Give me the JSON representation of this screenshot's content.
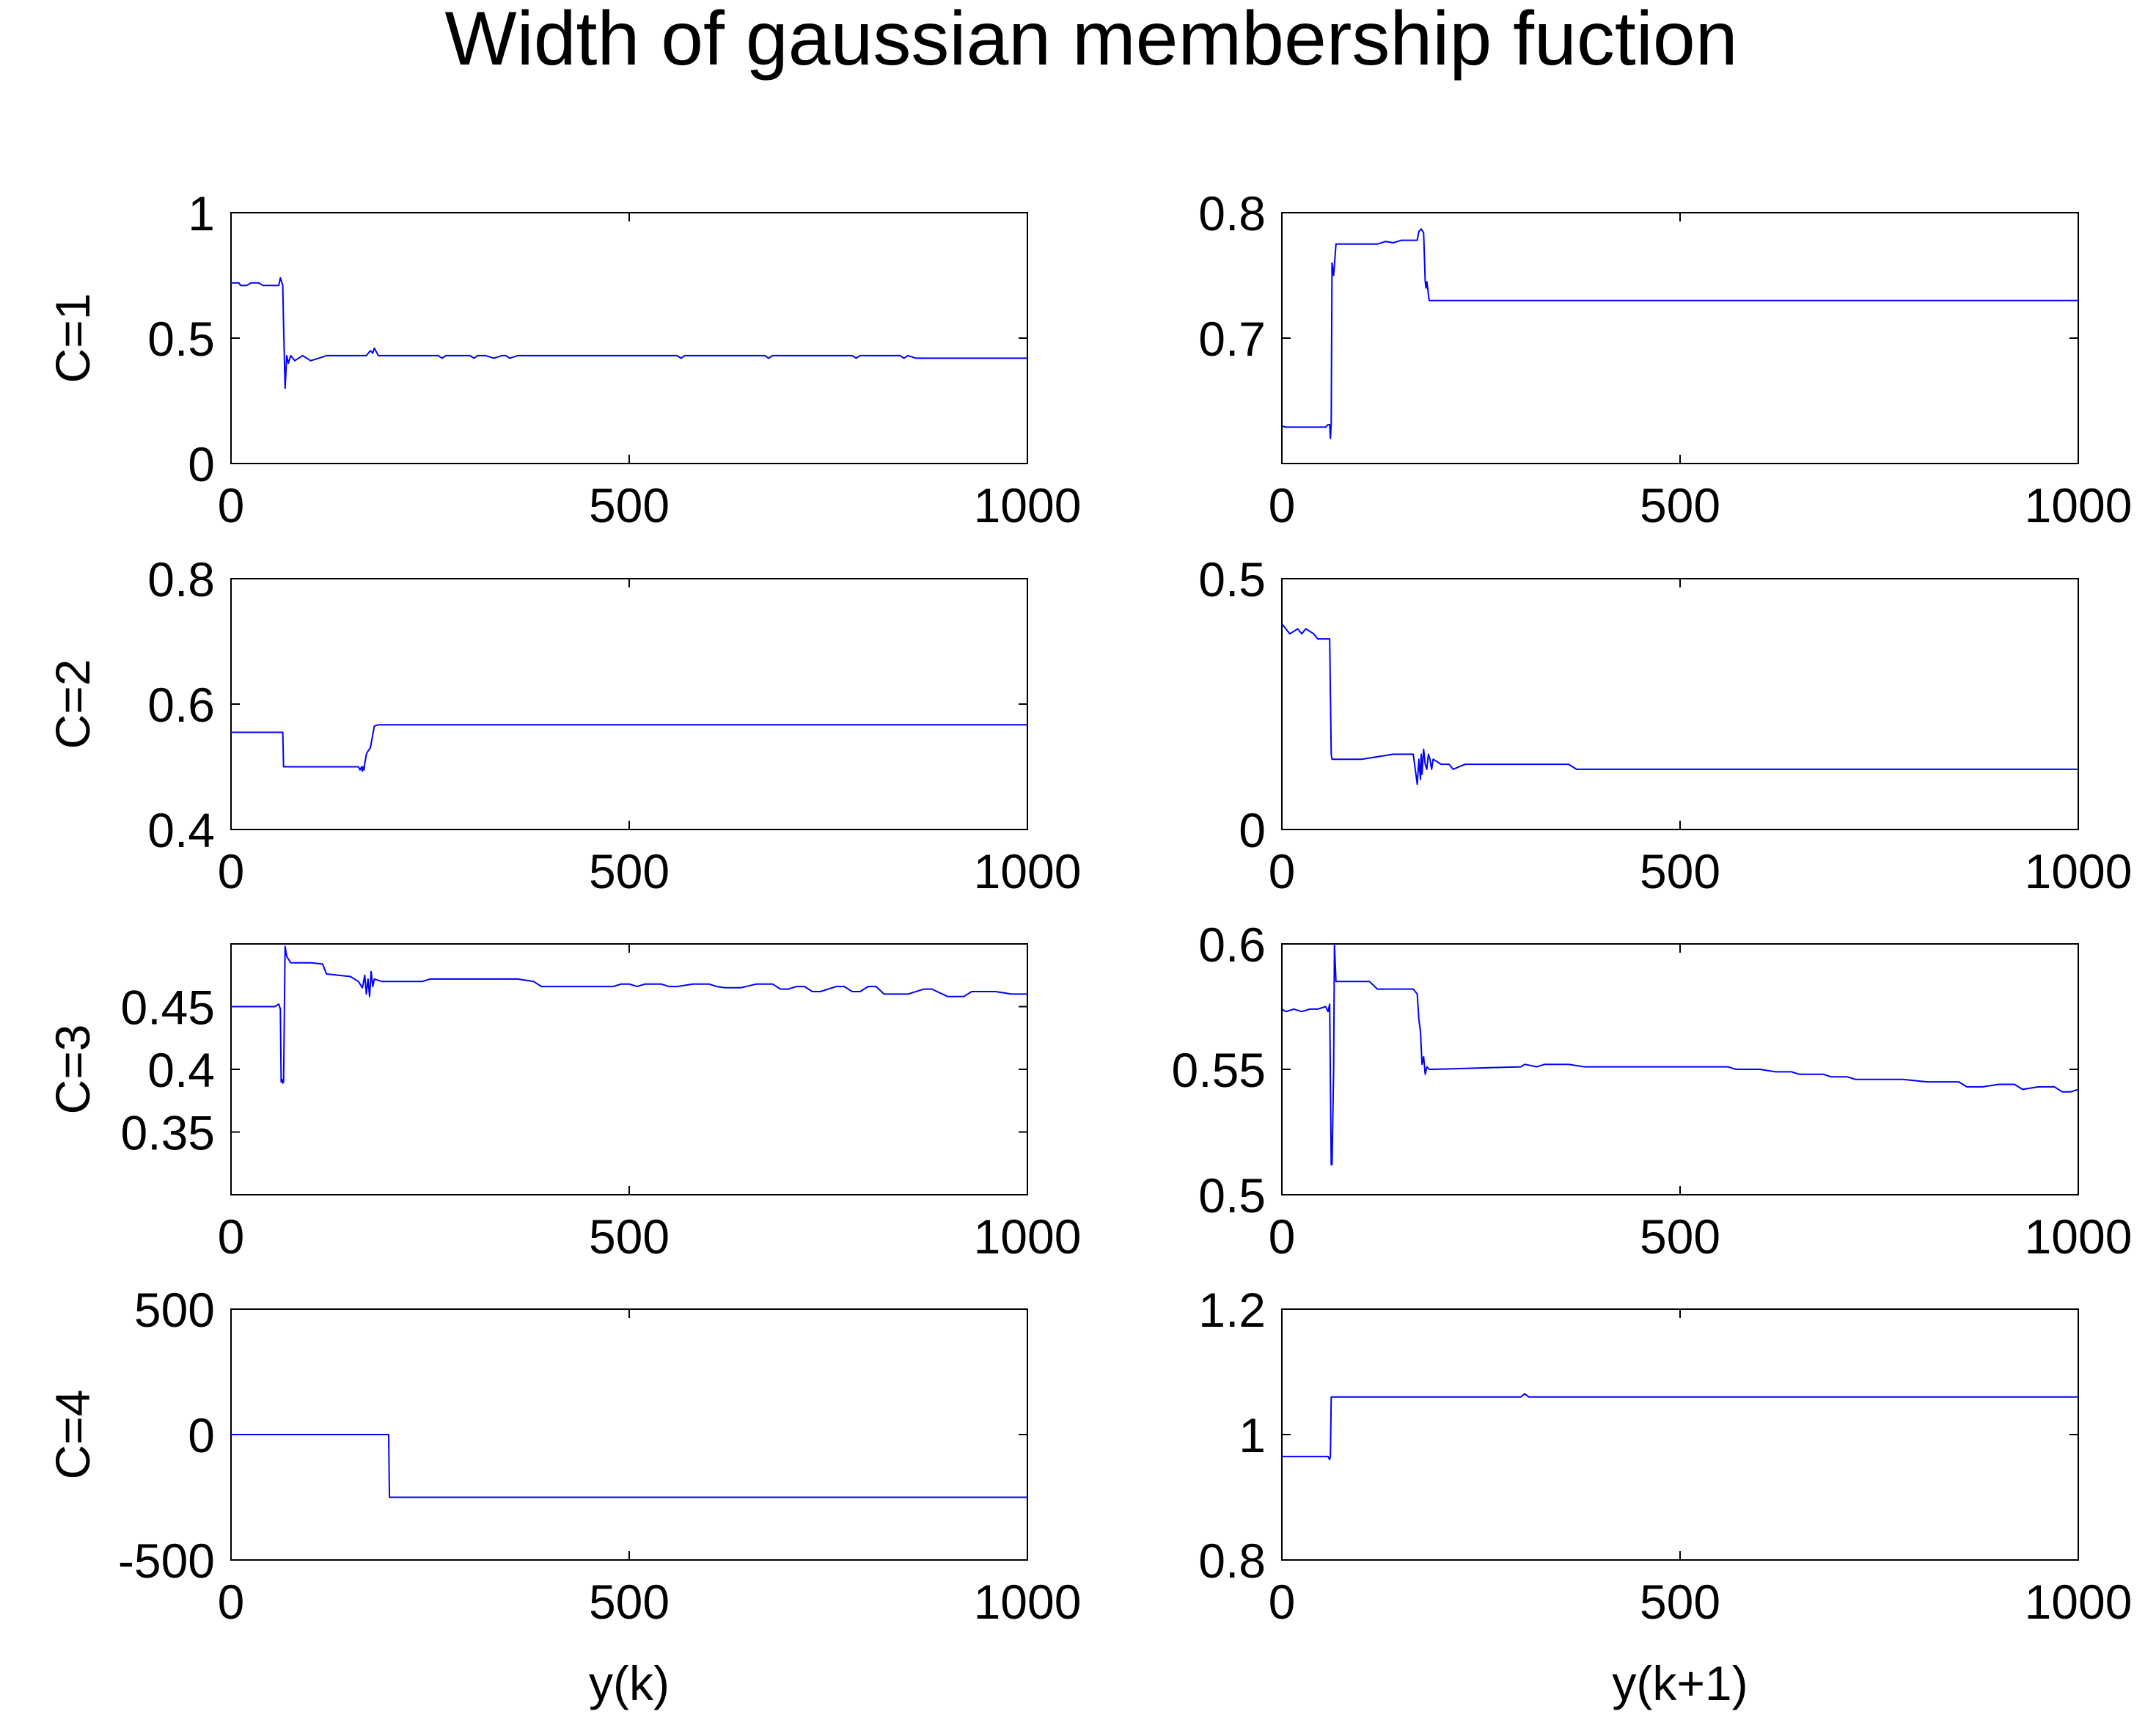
{
  "figure": {
    "title": "Width of gaussian membership fuction"
  },
  "style": {
    "line_color": "#0000ff",
    "axes_color": "#000000",
    "background": "#ffffff"
  },
  "chart_data": [
    {
      "type": "line",
      "row": 0,
      "col": 0,
      "ylabel": "C=1",
      "xlabel": "",
      "xlim": [
        0,
        1000
      ],
      "ylim": [
        0,
        1
      ],
      "xticks": [
        0,
        500,
        1000
      ],
      "xtick_labels": [
        "0",
        "500",
        "1000"
      ],
      "yticks": [
        0,
        0.5,
        1
      ],
      "ytick_labels": [
        "0",
        "0.5",
        "1"
      ],
      "series": [
        {
          "x": [
            0,
            10,
            12,
            20,
            25,
            35,
            40,
            50,
            60,
            62,
            65,
            66,
            68,
            70,
            72,
            75,
            80,
            90,
            100,
            110,
            120,
            170,
            175,
            178,
            180,
            185,
            200,
            260,
            265,
            270,
            280,
            300,
            305,
            310,
            320,
            330,
            340,
            345,
            350,
            360,
            560,
            565,
            570,
            670,
            675,
            680,
            780,
            785,
            790,
            840,
            845,
            850,
            860,
            1000
          ],
          "y": [
            0.72,
            0.72,
            0.71,
            0.71,
            0.72,
            0.72,
            0.71,
            0.71,
            0.71,
            0.74,
            0.71,
            0.55,
            0.3,
            0.43,
            0.4,
            0.43,
            0.41,
            0.43,
            0.41,
            0.42,
            0.43,
            0.43,
            0.45,
            0.44,
            0.46,
            0.43,
            0.43,
            0.43,
            0.42,
            0.43,
            0.43,
            0.43,
            0.42,
            0.43,
            0.43,
            0.42,
            0.43,
            0.43,
            0.42,
            0.43,
            0.43,
            0.42,
            0.43,
            0.43,
            0.42,
            0.43,
            0.43,
            0.42,
            0.43,
            0.43,
            0.42,
            0.43,
            0.42,
            0.42
          ]
        }
      ]
    },
    {
      "type": "line",
      "row": 0,
      "col": 1,
      "ylabel": "",
      "xlabel": "",
      "xlim": [
        0,
        1000
      ],
      "ylim": [
        0.6,
        0.8
      ],
      "xticks": [
        0,
        500,
        1000
      ],
      "xtick_labels": [
        "0",
        "500",
        "1000"
      ],
      "yticks": [
        0.7,
        0.8
      ],
      "ytick_labels": [
        "0.7",
        "0.8"
      ],
      "series": [
        {
          "x": [
            0,
            5,
            55,
            58,
            60,
            61,
            62,
            63,
            65,
            68,
            70,
            75,
            100,
            120,
            130,
            140,
            150,
            160,
            170,
            172,
            175,
            178,
            180,
            181,
            182,
            185,
            190,
            1000
          ],
          "y": [
            0.63,
            0.629,
            0.629,
            0.631,
            0.631,
            0.62,
            0.632,
            0.76,
            0.75,
            0.775,
            0.775,
            0.775,
            0.775,
            0.775,
            0.777,
            0.776,
            0.778,
            0.778,
            0.778,
            0.785,
            0.787,
            0.784,
            0.745,
            0.74,
            0.745,
            0.73,
            0.73,
            0.73
          ]
        }
      ]
    },
    {
      "type": "line",
      "row": 1,
      "col": 0,
      "ylabel": "C=2",
      "xlabel": "",
      "xlim": [
        0,
        1000
      ],
      "ylim": [
        0.4,
        0.8
      ],
      "xticks": [
        0,
        500,
        1000
      ],
      "xtick_labels": [
        "0",
        "500",
        "1000"
      ],
      "yticks": [
        0.4,
        0.6,
        0.8
      ],
      "ytick_labels": [
        "0.4",
        "0.6",
        "0.8"
      ],
      "series": [
        {
          "x": [
            0,
            65,
            66,
            160,
            162,
            164,
            165,
            166,
            167,
            168,
            170,
            172,
            175,
            180,
            185,
            1000
          ],
          "y": [
            0.555,
            0.555,
            0.5,
            0.5,
            0.495,
            0.5,
            0.493,
            0.5,
            0.495,
            0.505,
            0.52,
            0.525,
            0.53,
            0.565,
            0.567,
            0.567
          ]
        }
      ]
    },
    {
      "type": "line",
      "row": 1,
      "col": 1,
      "ylabel": "",
      "xlabel": "",
      "xlim": [
        0,
        1000
      ],
      "ylim": [
        0,
        0.5
      ],
      "xticks": [
        0,
        500,
        1000
      ],
      "xtick_labels": [
        "0",
        "500",
        "1000"
      ],
      "yticks": [
        0,
        0.5
      ],
      "ytick_labels": [
        "0",
        "0.5"
      ],
      "series": [
        {
          "x": [
            0,
            5,
            10,
            20,
            25,
            30,
            40,
            45,
            60,
            62,
            63,
            65,
            100,
            140,
            165,
            170,
            172,
            174,
            175,
            176,
            178,
            180,
            182,
            184,
            186,
            188,
            190,
            200,
            210,
            215,
            230,
            240,
            360,
            370,
            1000
          ],
          "y": [
            0.41,
            0.4,
            0.39,
            0.4,
            0.39,
            0.4,
            0.39,
            0.38,
            0.38,
            0.15,
            0.14,
            0.14,
            0.14,
            0.15,
            0.15,
            0.09,
            0.14,
            0.1,
            0.15,
            0.11,
            0.16,
            0.13,
            0.12,
            0.15,
            0.14,
            0.12,
            0.14,
            0.13,
            0.13,
            0.12,
            0.13,
            0.13,
            0.13,
            0.12,
            0.12
          ]
        }
      ]
    },
    {
      "type": "line",
      "row": 2,
      "col": 0,
      "ylabel": "C=3",
      "xlabel": "",
      "xlim": [
        0,
        1000
      ],
      "ylim": [
        0.3,
        0.5
      ],
      "xticks": [
        0,
        500,
        1000
      ],
      "xtick_labels": [
        "0",
        "500",
        "1000"
      ],
      "yticks": [
        0.35,
        0.4,
        0.45
      ],
      "ytick_labels": [
        "0.35",
        "0.4",
        "0.45"
      ],
      "series": [
        {
          "x": [
            0,
            55,
            60,
            62,
            63,
            64,
            65,
            66,
            67,
            68,
            70,
            75,
            100,
            115,
            120,
            150,
            160,
            165,
            168,
            170,
            172,
            174,
            176,
            178,
            180,
            190,
            240,
            250,
            360,
            380,
            390,
            420,
            480,
            490,
            500,
            510,
            520,
            540,
            550,
            560,
            580,
            600,
            610,
            620,
            640,
            660,
            680,
            690,
            700,
            710,
            720,
            730,
            740,
            760,
            770,
            780,
            790,
            800,
            810,
            820,
            830,
            850,
            870,
            880,
            900,
            920,
            930,
            940,
            960,
            980,
            1000
          ],
          "y": [
            0.45,
            0.45,
            0.452,
            0.448,
            0.39,
            0.392,
            0.389,
            0.39,
            0.448,
            0.498,
            0.49,
            0.485,
            0.485,
            0.484,
            0.476,
            0.474,
            0.47,
            0.465,
            0.475,
            0.46,
            0.472,
            0.458,
            0.478,
            0.466,
            0.472,
            0.47,
            0.47,
            0.472,
            0.472,
            0.47,
            0.466,
            0.466,
            0.466,
            0.468,
            0.468,
            0.466,
            0.468,
            0.468,
            0.466,
            0.466,
            0.468,
            0.468,
            0.466,
            0.465,
            0.465,
            0.468,
            0.468,
            0.464,
            0.464,
            0.466,
            0.466,
            0.462,
            0.462,
            0.466,
            0.466,
            0.462,
            0.462,
            0.466,
            0.466,
            0.46,
            0.46,
            0.46,
            0.464,
            0.464,
            0.458,
            0.458,
            0.462,
            0.462,
            0.462,
            0.46,
            0.46
          ]
        }
      ]
    },
    {
      "type": "line",
      "row": 2,
      "col": 1,
      "ylabel": "",
      "xlabel": "",
      "xlim": [
        0,
        1000
      ],
      "ylim": [
        0.5,
        0.6
      ],
      "xticks": [
        0,
        500,
        1000
      ],
      "xtick_labels": [
        "0",
        "500",
        "1000"
      ],
      "yticks": [
        0.5,
        0.55,
        0.6
      ],
      "ytick_labels": [
        "0.5",
        "0.55",
        "0.6"
      ],
      "series": [
        {
          "x": [
            0,
            5,
            15,
            25,
            35,
            45,
            55,
            58,
            60,
            62,
            63,
            65,
            66,
            68,
            70,
            110,
            120,
            165,
            170,
            172,
            174,
            176,
            178,
            180,
            182,
            185,
            190,
            300,
            305,
            320,
            330,
            360,
            380,
            560,
            570,
            600,
            620,
            640,
            650,
            670,
            680,
            690,
            710,
            720,
            740,
            770,
            780,
            810,
            830,
            850,
            860,
            880,
            900,
            920,
            930,
            950,
            970,
            980,
            990,
            1000
          ],
          "y": [
            0.574,
            0.573,
            0.574,
            0.573,
            0.574,
            0.574,
            0.575,
            0.573,
            0.576,
            0.512,
            0.512,
            0.55,
            0.6,
            0.585,
            0.585,
            0.585,
            0.582,
            0.582,
            0.58,
            0.57,
            0.565,
            0.552,
            0.555,
            0.548,
            0.551,
            0.55,
            0.55,
            0.551,
            0.552,
            0.551,
            0.552,
            0.552,
            0.551,
            0.551,
            0.55,
            0.55,
            0.549,
            0.549,
            0.548,
            0.548,
            0.548,
            0.547,
            0.547,
            0.546,
            0.546,
            0.546,
            0.546,
            0.545,
            0.545,
            0.545,
            0.543,
            0.543,
            0.544,
            0.544,
            0.542,
            0.543,
            0.543,
            0.541,
            0.541,
            0.542
          ]
        }
      ]
    },
    {
      "type": "line",
      "row": 3,
      "col": 0,
      "ylabel": "C=4",
      "xlabel": "y(k)",
      "xlim": [
        0,
        1000
      ],
      "ylim": [
        -500,
        500
      ],
      "xticks": [
        0,
        500,
        1000
      ],
      "xtick_labels": [
        "0",
        "500",
        "1000"
      ],
      "yticks": [
        -500,
        0,
        500
      ],
      "ytick_labels": [
        "-500",
        "0",
        "500"
      ],
      "series": [
        {
          "x": [
            0,
            198,
            199,
            1000
          ],
          "y": [
            0,
            0,
            -250,
            -250
          ]
        }
      ]
    },
    {
      "type": "line",
      "row": 3,
      "col": 1,
      "ylabel": "",
      "xlabel": "y(k+1)",
      "xlim": [
        0,
        1000
      ],
      "ylim": [
        0.8,
        1.2
      ],
      "xticks": [
        0,
        500,
        1000
      ],
      "xtick_labels": [
        "0",
        "500",
        "1000"
      ],
      "yticks": [
        0.8,
        1,
        1.2
      ],
      "ytick_labels": [
        "0.8",
        "1",
        "1.2"
      ],
      "series": [
        {
          "x": [
            0,
            58,
            60,
            61,
            62,
            300,
            305,
            310,
            1000
          ],
          "y": [
            0.965,
            0.965,
            0.96,
            0.965,
            1.06,
            1.06,
            1.065,
            1.06,
            1.06
          ]
        }
      ]
    }
  ]
}
